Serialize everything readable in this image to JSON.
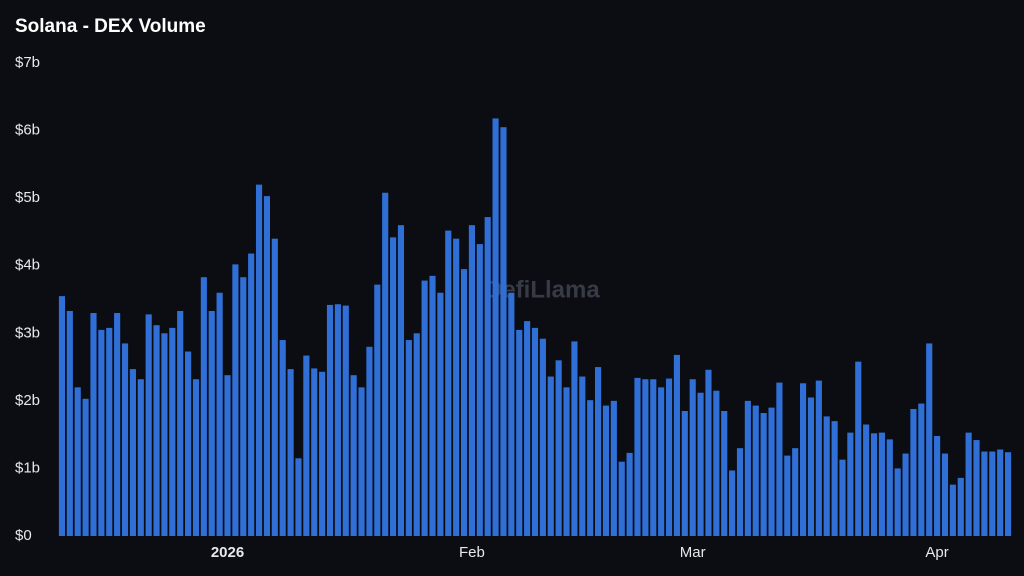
{
  "chart_data": {
    "type": "bar",
    "title": "Solana - DEX Volume",
    "watermark": "DefiLlama",
    "color": "#2f6fd6",
    "categories": [
      null,
      null,
      null,
      null,
      null,
      null,
      null,
      null,
      null,
      null,
      null,
      null,
      null,
      null,
      null,
      null,
      null,
      null,
      null,
      null,
      null,
      "2026",
      null,
      null,
      null,
      null,
      null,
      null,
      null,
      null,
      null,
      null,
      null,
      null,
      null,
      null,
      null,
      null,
      null,
      null,
      null,
      null,
      null,
      null,
      null,
      null,
      null,
      null,
      null,
      null,
      null,
      null,
      "Feb",
      null,
      null,
      null,
      null,
      null,
      null,
      null,
      null,
      null,
      null,
      null,
      null,
      null,
      null,
      null,
      null,
      null,
      null,
      null,
      null,
      null,
      null,
      null,
      null,
      null,
      null,
      null,
      "Mar",
      null,
      null,
      null,
      null,
      null,
      null,
      null,
      null,
      null,
      null,
      null,
      null,
      null,
      null,
      null,
      null,
      null,
      null,
      null,
      null,
      null,
      null,
      null,
      null,
      null,
      null,
      null,
      null,
      null,
      null,
      "Apr",
      null,
      null,
      null,
      null,
      null,
      null,
      null,
      null,
      null
    ],
    "values": [
      3.55,
      3.33,
      2.2,
      2.03,
      3.3,
      3.05,
      3.08,
      3.3,
      2.85,
      2.47,
      2.32,
      3.28,
      3.12,
      3.0,
      3.08,
      3.33,
      2.73,
      2.32,
      3.83,
      3.33,
      3.6,
      2.38,
      4.02,
      3.83,
      4.18,
      5.2,
      5.03,
      4.4,
      2.9,
      2.47,
      1.15,
      2.67,
      2.48,
      2.43,
      3.42,
      3.43,
      3.41,
      2.38,
      2.2,
      2.8,
      3.72,
      5.08,
      4.42,
      4.6,
      2.9,
      3.0,
      3.78,
      3.85,
      3.6,
      4.52,
      4.4,
      3.95,
      4.6,
      4.32,
      4.72,
      6.18,
      6.05,
      3.6,
      3.05,
      3.18,
      3.08,
      2.92,
      2.36,
      2.6,
      2.2,
      2.88,
      2.36,
      2.01,
      2.5,
      1.93,
      2.0,
      1.1,
      1.23,
      2.34,
      2.32,
      2.32,
      2.2,
      2.33,
      2.68,
      1.85,
      2.32,
      2.12,
      2.46,
      2.15,
      1.85,
      0.97,
      1.3,
      2.0,
      1.93,
      1.82,
      1.9,
      2.27,
      1.19,
      1.3,
      2.26,
      2.05,
      2.3,
      1.77,
      1.7,
      1.13,
      1.53,
      2.58,
      1.65,
      1.52,
      1.53,
      1.43,
      1.0,
      1.22,
      1.88,
      1.96,
      2.85,
      1.48,
      1.22,
      0.76,
      0.86,
      1.53,
      1.42,
      1.25,
      1.25,
      1.28,
      1.24
    ],
    "ylim": [
      0,
      7
    ],
    "yticks": [
      {
        "value": 0,
        "label": "$0"
      },
      {
        "value": 1,
        "label": "$1b"
      },
      {
        "value": 2,
        "label": "$2b"
      },
      {
        "value": 3,
        "label": "$3b"
      },
      {
        "value": 4,
        "label": "$4b"
      },
      {
        "value": 5,
        "label": "$5b"
      },
      {
        "value": 6,
        "label": "$6b"
      },
      {
        "value": 7,
        "label": "$7b"
      }
    ]
  }
}
